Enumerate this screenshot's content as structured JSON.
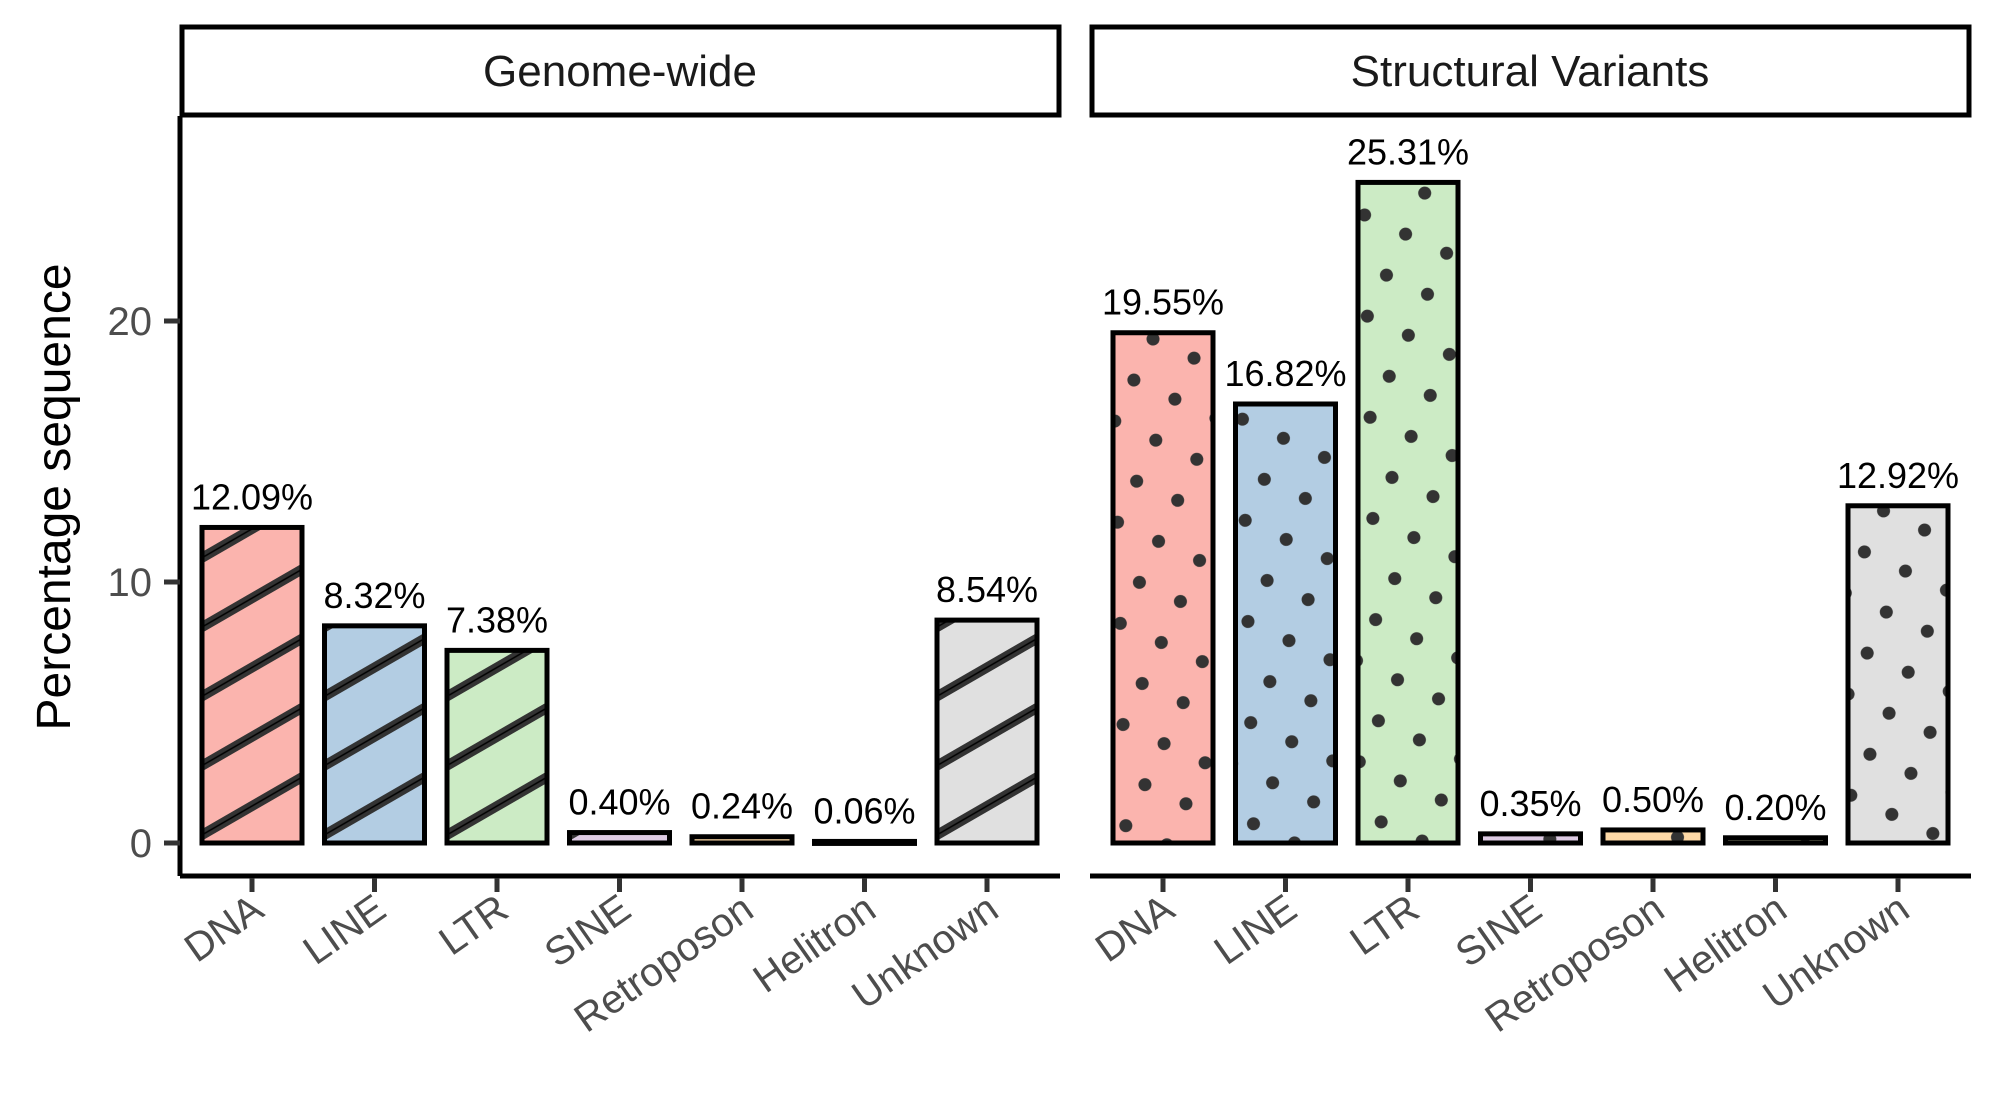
{
  "chart_data": [
    {
      "type": "bar",
      "panel": "Genome-wide",
      "pattern": "stripe",
      "categories": [
        "DNA",
        "LINE",
        "LTR",
        "SINE",
        "Retroposon",
        "Helitron",
        "Unknown"
      ],
      "values": [
        12.09,
        8.32,
        7.38,
        0.4,
        0.24,
        0.06,
        8.54
      ],
      "labels": [
        "12.09%",
        "8.32%",
        "7.38%",
        "0.40%",
        "0.24%",
        "0.06%",
        "8.54%"
      ],
      "colors": [
        "#fbb4ae",
        "#b3cde3",
        "#ccebc5",
        "#decbe4",
        "#fed9a6",
        "#ffffcc",
        "#e0e0e0"
      ],
      "ylabel": "Percentage sequence",
      "ylim": [
        -1.3,
        28
      ],
      "yticks": [
        0,
        10,
        20
      ]
    },
    {
      "type": "bar",
      "panel": "Structural Variants",
      "pattern": "dots",
      "categories": [
        "DNA",
        "LINE",
        "LTR",
        "SINE",
        "Retroposon",
        "Helitron",
        "Unknown"
      ],
      "values": [
        19.55,
        16.82,
        25.31,
        0.35,
        0.5,
        0.2,
        12.92
      ],
      "labels": [
        "19.55%",
        "16.82%",
        "25.31%",
        "0.35%",
        "0.50%",
        "0.20%",
        "12.92%"
      ],
      "colors": [
        "#fbb4ae",
        "#b3cde3",
        "#ccebc5",
        "#decbe4",
        "#fed9a6",
        "#ffffcc",
        "#e0e0e0"
      ],
      "ylabel": "Percentage sequence",
      "ylim": [
        -1.3,
        28
      ],
      "yticks": [
        0,
        10,
        20
      ]
    }
  ],
  "axis": {
    "ylabel": "Percentage sequence",
    "yticks": [
      "0",
      "10",
      "20"
    ]
  },
  "panels": [
    {
      "title": "Genome-wide"
    },
    {
      "title": "Structural Variants"
    }
  ],
  "style": {
    "outline_color": "#000000",
    "pattern_color": "#333333",
    "tick_text_color": "#4d4d4d"
  }
}
